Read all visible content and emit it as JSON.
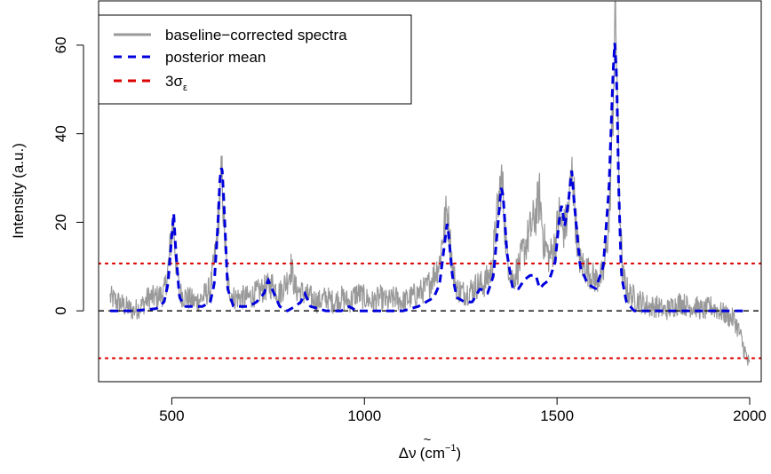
{
  "chart_data": {
    "type": "line",
    "xlabel_delta": "Δ",
    "xlabel_nu": "ν",
    "xlabel_tilde": "~",
    "xlabel_unit_open": "(cm",
    "xlabel_unit_exp": "−1",
    "xlabel_unit_close": ")",
    "ylabel": "Intensity (a.u.)",
    "xlim": [
      310,
      2030
    ],
    "ylim": [
      -16,
      70
    ],
    "x_ticks": [
      500,
      1000,
      1500,
      2000
    ],
    "x_tick_labels": [
      "500",
      "1000",
      "1500",
      "2000"
    ],
    "y_ticks": [
      0,
      20,
      40,
      60
    ],
    "y_tick_labels": [
      "0",
      "20",
      "40",
      "60"
    ],
    "legend_position": "top-left",
    "grid": false,
    "legend": [
      {
        "label": "baseline−corrected spectra",
        "color": "#999999",
        "style": "solid"
      },
      {
        "label": "posterior mean",
        "color": "#0000dd",
        "style": "dashed"
      },
      {
        "label": "3σ",
        "subscript": "ε",
        "color": "#dd0000",
        "style": "dashed"
      }
    ],
    "series": [
      {
        "name": "baseline−corrected spectra",
        "color": "#999999",
        "style": "solid",
        "x": [
          340,
          360,
          380,
          400,
          420,
          440,
          460,
          480,
          490,
          500,
          505,
          510,
          520,
          540,
          560,
          580,
          600,
          615,
          625,
          630,
          635,
          645,
          660,
          680,
          700,
          720,
          740,
          760,
          780,
          800,
          810,
          820,
          840,
          860,
          880,
          900,
          920,
          940,
          960,
          980,
          1000,
          1020,
          1040,
          1060,
          1080,
          1100,
          1120,
          1140,
          1160,
          1180,
          1195,
          1205,
          1215,
          1220,
          1230,
          1240,
          1260,
          1280,
          1295,
          1310,
          1330,
          1345,
          1355,
          1360,
          1370,
          1385,
          1400,
          1415,
          1430,
          1445,
          1455,
          1465,
          1480,
          1495,
          1505,
          1515,
          1525,
          1535,
          1540,
          1550,
          1560,
          1580,
          1600,
          1620,
          1635,
          1645,
          1650,
          1655,
          1660,
          1670,
          1685,
          1700,
          1720,
          1740,
          1760,
          1780,
          1800,
          1820,
          1840,
          1860,
          1880,
          1900,
          1920,
          1940,
          1960,
          1970,
          1980,
          1990,
          2000
        ],
        "y": [
          3,
          2,
          1,
          0,
          1,
          3,
          3,
          4,
          9,
          18,
          20,
          12,
          4,
          3,
          2,
          3,
          5,
          14,
          26,
          31,
          20,
          6,
          3,
          3,
          3,
          4,
          5,
          6,
          4,
          7,
          10,
          5,
          4,
          3,
          2,
          3,
          2,
          3,
          2,
          4,
          3,
          2,
          3,
          2,
          3,
          2,
          3,
          4,
          5,
          8,
          11,
          18,
          23,
          18,
          9,
          5,
          4,
          5,
          6,
          6,
          9,
          22,
          30,
          26,
          12,
          7,
          10,
          14,
          18,
          22,
          26,
          16,
          12,
          15,
          22,
          18,
          20,
          28,
          32,
          18,
          11,
          9,
          7,
          8,
          20,
          45,
          66,
          58,
          30,
          8,
          4,
          3,
          2,
          1,
          1,
          0,
          1,
          2,
          1,
          1,
          0,
          1,
          0,
          -1,
          -2,
          -4,
          -7,
          -10,
          -13
        ],
        "y_spread": 3.5
      },
      {
        "name": "posterior mean",
        "color": "#0000dd",
        "style": "dashed",
        "x": [
          340,
          400,
          460,
          480,
          490,
          500,
          505,
          510,
          520,
          535,
          560,
          580,
          600,
          610,
          620,
          625,
          630,
          635,
          645,
          660,
          680,
          700,
          720,
          740,
          750,
          760,
          780,
          800,
          820,
          835,
          845,
          860,
          900,
          940,
          960,
          980,
          1000,
          1050,
          1100,
          1140,
          1160,
          1180,
          1195,
          1205,
          1215,
          1220,
          1228,
          1240,
          1260,
          1280,
          1300,
          1320,
          1335,
          1345,
          1355,
          1360,
          1370,
          1385,
          1400,
          1415,
          1430,
          1445,
          1455,
          1465,
          1480,
          1495,
          1505,
          1512,
          1520,
          1530,
          1538,
          1545,
          1560,
          1580,
          1600,
          1620,
          1635,
          1645,
          1650,
          1655,
          1660,
          1667,
          1680,
          1700,
          1720,
          1750,
          1800,
          1850,
          1900,
          1950,
          1990
        ],
        "y": [
          0,
          0,
          0.5,
          2,
          6,
          17,
          22,
          14,
          3,
          1,
          1,
          1,
          2,
          6,
          20,
          30,
          33,
          25,
          5,
          1,
          1,
          1,
          2,
          4,
          7,
          5,
          1,
          0,
          1,
          2,
          4,
          1,
          0,
          0,
          1,
          0,
          0,
          0,
          0,
          1,
          2,
          3,
          6,
          13,
          20,
          16,
          8,
          3,
          2,
          2,
          5,
          4,
          8,
          18,
          28,
          26,
          13,
          5,
          5,
          7,
          8,
          8,
          5,
          6,
          7,
          11,
          20,
          24,
          19,
          25,
          32,
          24,
          10,
          6,
          5,
          10,
          28,
          53,
          61,
          52,
          28,
          8,
          2,
          0,
          0,
          0,
          0,
          0,
          0,
          0,
          0
        ]
      }
    ],
    "hlines": [
      {
        "y": 0,
        "color": "#000000",
        "style": "dashed",
        "role": "zero"
      },
      {
        "y": 10.7,
        "color": "#dd0000",
        "style": "dotted",
        "role": "3σ_ε"
      },
      {
        "y": -10.7,
        "color": "#dd0000",
        "style": "dotted",
        "role": "-3σ_ε"
      }
    ]
  }
}
